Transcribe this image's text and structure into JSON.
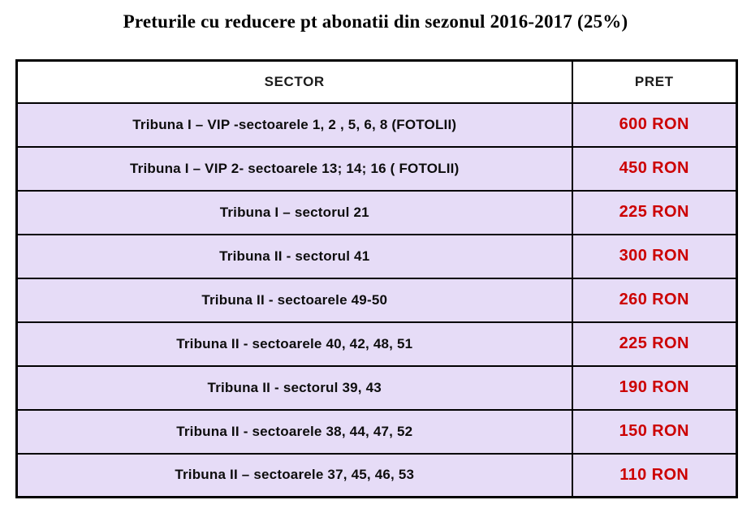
{
  "title": "Preturile cu reducere pt abonatii din sezonul 2016-2017 (25%)",
  "colors": {
    "row_background": "#e6dcf7",
    "header_background": "#ffffff",
    "price_text": "#cc0000",
    "border": "#000000",
    "title_text": "#000000"
  },
  "table": {
    "headers": [
      "SECTOR",
      "PRET"
    ],
    "rows": [
      {
        "sector": "Tribuna I – VIP -sectoarele 1, 2 , 5, 6, 8 (FOTOLII)",
        "pret": "600 RON"
      },
      {
        "sector": "Tribuna I – VIP 2- sectoarele 13; 14; 16 ( FOTOLII)",
        "pret": "450 RON"
      },
      {
        "sector": "Tribuna I – sectorul 21",
        "pret": "225 RON"
      },
      {
        "sector": "Tribuna II - sectorul 41",
        "pret": "300 RON"
      },
      {
        "sector": "Tribuna II - sectoarele 49-50",
        "pret": "260 RON"
      },
      {
        "sector": "Tribuna II - sectoarele 40, 42, 48, 51",
        "pret": "225 RON"
      },
      {
        "sector": "Tribuna II - sectorul 39, 43",
        "pret": "190 RON"
      },
      {
        "sector": "Tribuna II - sectoarele 38, 44, 47, 52",
        "pret": "150 RON"
      },
      {
        "sector": "Tribuna II – sectoarele 37, 45, 46, 53",
        "pret": "110 RON"
      }
    ]
  }
}
